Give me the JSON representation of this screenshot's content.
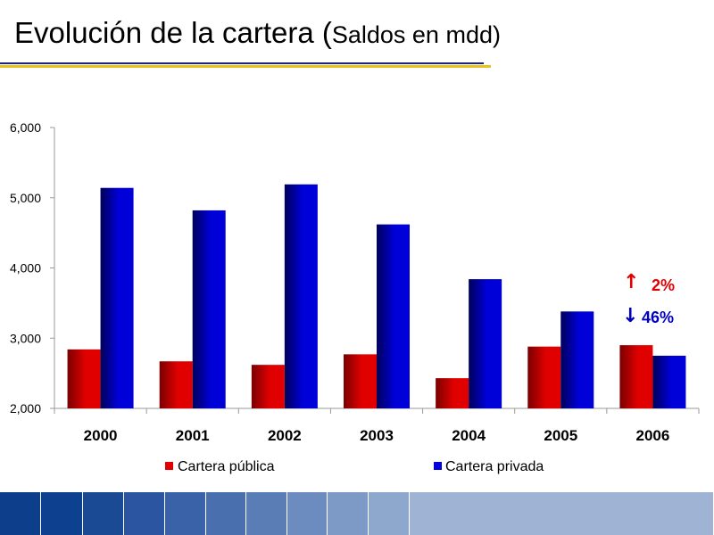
{
  "slide": {
    "title_main": "Evolución de la cartera (",
    "title_small": "Saldos en mdd)"
  },
  "annotations": {
    "up": {
      "arrow": "↑",
      "text": "2%",
      "color": "#e00000"
    },
    "down": {
      "arrow": "↓",
      "text": "46%",
      "color": "#0000c0"
    }
  },
  "chart_data": {
    "type": "bar",
    "categories": [
      "2000",
      "2001",
      "2002",
      "2003",
      "2004",
      "2005",
      "2006"
    ],
    "series": [
      {
        "name": "Cartera pública",
        "color": "#e00000",
        "values": [
          2840,
          2670,
          2620,
          2770,
          2430,
          2880,
          2900
        ]
      },
      {
        "name": "Cartera privada",
        "color": "#0000d8",
        "values": [
          5140,
          4820,
          5190,
          4620,
          3840,
          3380,
          2750
        ]
      }
    ],
    "ylim": [
      2000,
      6000
    ],
    "yticks": [
      "2,000",
      "3,000",
      "4,000",
      "5,000",
      "6,000"
    ],
    "ytick_values": [
      2000,
      3000,
      4000,
      5000,
      6000
    ],
    "legend_position": "bottom",
    "grid": false
  },
  "footer": {
    "colors": [
      "#0c3e8c",
      "#0d4190",
      "#1a4a94",
      "#2b55a0",
      "#3a62a8",
      "#4a6fae",
      "#5b7db6",
      "#6c8bbe",
      "#7d99c6",
      "#8ea7cd",
      "#9fb4d4"
    ]
  }
}
